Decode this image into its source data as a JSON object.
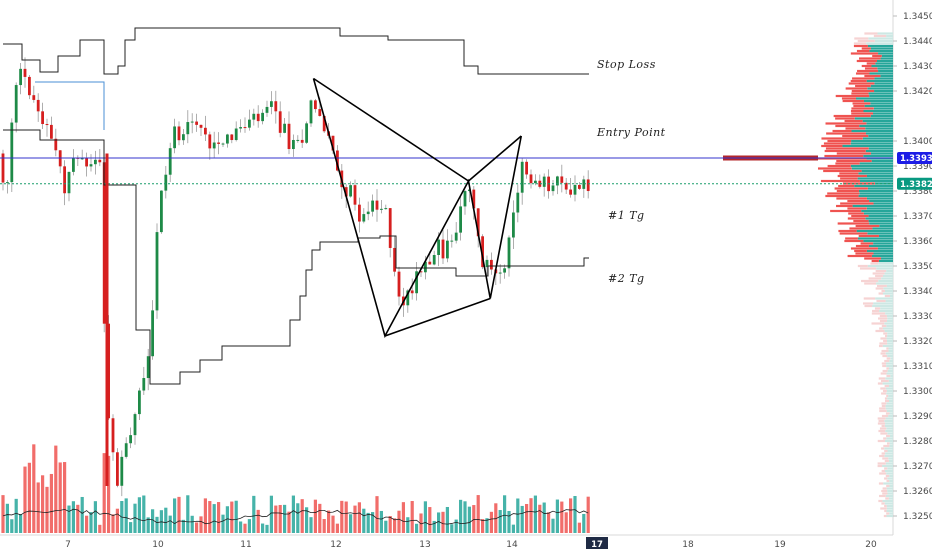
{
  "chart_data": {
    "type": "candlestick",
    "title": "",
    "xlabel": "",
    "ylabel": "",
    "ylim": [
      1.3243,
      1.3453
    ],
    "x_ticks": [
      "7",
      "10",
      "11",
      "12",
      "13",
      "14",
      "17",
      "18",
      "19",
      "20"
    ],
    "y_ticks": [
      "1.34500",
      "1.34400",
      "1.34300",
      "1.34200",
      "1.34000",
      "1.33900",
      "1.33800",
      "1.33700",
      "1.33600",
      "1.33500",
      "1.33400",
      "1.33300",
      "1.33200",
      "1.33100",
      "1.33000",
      "1.32900",
      "1.32800",
      "1.32700",
      "1.32600",
      "1.32500"
    ],
    "price_badges": [
      {
        "value": "1.33932",
        "color": "#1c1ce6"
      },
      {
        "value": "1.33829",
        "color": "#089981"
      }
    ],
    "annotations": [
      "Stop Loss",
      "Entry Point",
      "#1 Tg",
      "#2 Tg"
    ],
    "harmonic_pattern": {
      "points": [
        {
          "x_day": 11.75,
          "y": 1.3425
        },
        {
          "x_day": 12.55,
          "y": 1.3322
        },
        {
          "x_day": 13.5,
          "y": 1.3384
        },
        {
          "x_day": 13.75,
          "y": 1.3337
        },
        {
          "x_day": 14.33,
          "y": 1.3402
        }
      ]
    },
    "horizontal_lines": [
      {
        "value": 1.33932,
        "color": "#3333cc"
      },
      {
        "value": 1.33829,
        "color": "#1a9d6b",
        "style": "dotted"
      }
    ],
    "volume_profile": {
      "poc": 1.33932,
      "value_area": [
        1.3352,
        1.3438
      ]
    },
    "colors": {
      "up": "#26a69a",
      "down": "#ef5350",
      "pattern": "#000000",
      "up_candle": "#1e8a47",
      "down_candle": "#d61f1f"
    }
  }
}
